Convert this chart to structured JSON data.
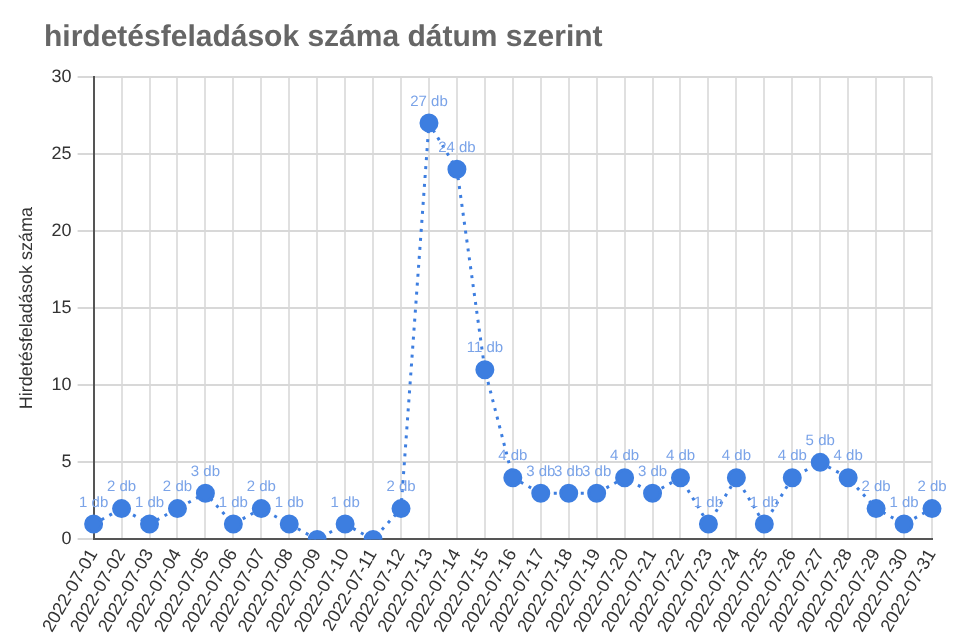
{
  "chart_data": {
    "type": "line",
    "title": "hirdetésfeladások száma dátum szerint",
    "ylabel": "Hirdetésfeladások száma",
    "categories": [
      "2022-07-01",
      "2022-07-02",
      "2022-07-03",
      "2022-07-04",
      "2022-07-05",
      "2022-07-06",
      "2022-07-07",
      "2022-07-08",
      "2022-07-09",
      "2022-07-10",
      "2022-07-11",
      "2022-07-12",
      "2022-07-13",
      "2022-07-14",
      "2022-07-15",
      "2022-07-16",
      "2022-07-17",
      "2022-07-18",
      "2022-07-19",
      "2022-07-20",
      "2022-07-21",
      "2022-07-22",
      "2022-07-23",
      "2022-07-24",
      "2022-07-25",
      "2022-07-26",
      "2022-07-27",
      "2022-07-28",
      "2022-07-29",
      "2022-07-30",
      "2022-07-31"
    ],
    "series": [
      {
        "color": "#3d7ee0",
        "values": [
          1,
          2,
          1,
          2,
          3,
          1,
          2,
          1,
          0,
          1,
          0,
          2,
          27,
          24,
          11,
          4,
          3,
          3,
          3,
          4,
          3,
          4,
          1,
          4,
          1,
          4,
          5,
          4,
          2,
          1,
          2
        ],
        "value_labels": [
          "1 db",
          "2 db",
          "1 db",
          "2 db",
          "3 db",
          "1 db",
          "2 db",
          "1 db",
          null,
          "1 db",
          null,
          "2 db",
          "27 db",
          "24 db",
          "11 db",
          "4 db",
          "3 db",
          "3 db",
          "3 db",
          "4 db",
          "3 db",
          "4 db",
          "1 db",
          "4 db",
          "1 db",
          "4 db",
          "5 db",
          "4 db",
          "2 db",
          "1 db",
          "2 db"
        ]
      }
    ],
    "ylim": [
      0,
      30
    ],
    "yticks": [
      0,
      5,
      10,
      15,
      20,
      25,
      30
    ],
    "grid": true,
    "legend": false,
    "marker": "circle",
    "line_style": "dotted"
  }
}
